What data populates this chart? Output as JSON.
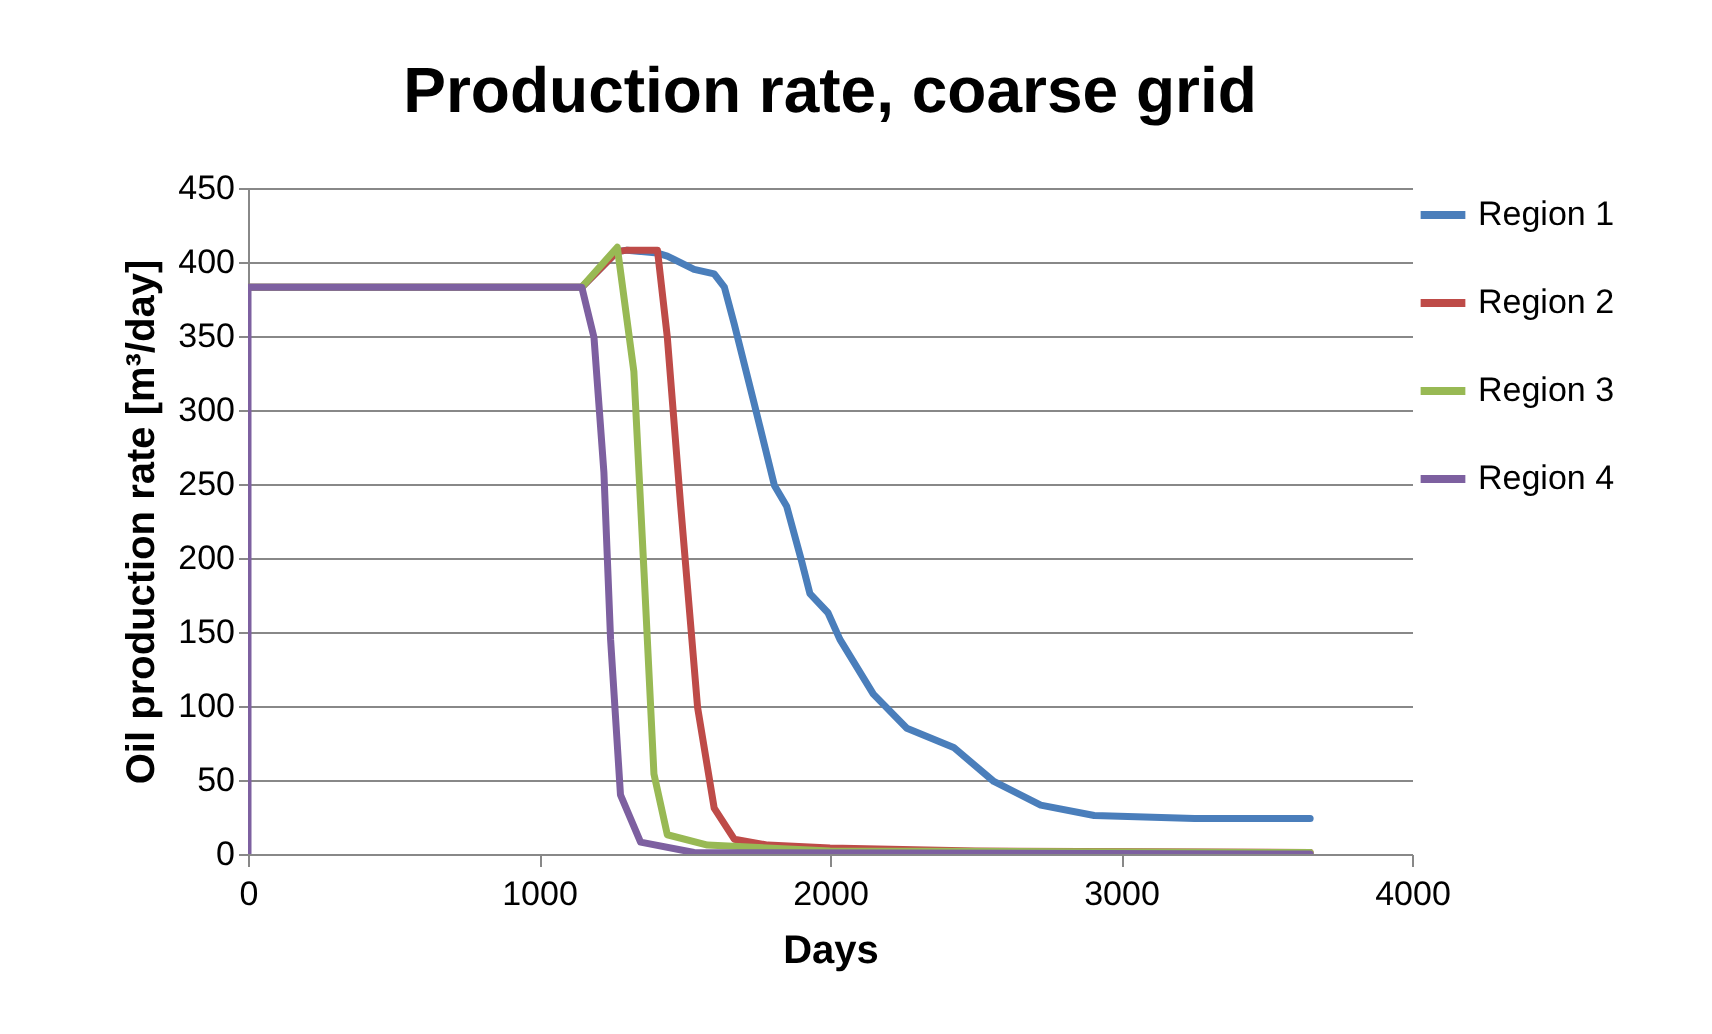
{
  "chart_data": {
    "type": "line",
    "title": "Production rate, coarse grid",
    "xlabel": "Days",
    "ylabel": "Oil production rate [m³/day]",
    "xlim": [
      0,
      4000
    ],
    "xticks": [
      0,
      1000,
      2000,
      3000,
      4000
    ],
    "ylim": [
      0,
      450
    ],
    "yticks": [
      0,
      50,
      100,
      150,
      200,
      250,
      300,
      350,
      400,
      450
    ],
    "grid": "y",
    "legend": "right",
    "series": [
      {
        "name": "Region 1",
        "color": "#4a7ebb",
        "x": [
          0,
          1147,
          1269,
          1303,
          1407,
          1441,
          1533,
          1602,
          1637,
          1671,
          1740,
          1809,
          1851,
          1901,
          1931,
          1993,
          2034,
          2149,
          2264,
          2425,
          2563,
          2724,
          2908,
          3253,
          3650
        ],
        "values": [
          383,
          383,
          407,
          408,
          406,
          404,
          395,
          392,
          383,
          358,
          304,
          249,
          235,
          199,
          176,
          163,
          145,
          108,
          85,
          72,
          49,
          33,
          26,
          24,
          24
        ]
      },
      {
        "name": "Region 2",
        "color": "#be4b48",
        "x": [
          0,
          1147,
          1269,
          1303,
          1407,
          1441,
          1487,
          1545,
          1602,
          1671,
          1786,
          2000,
          2500,
          3650
        ],
        "values": [
          383,
          383,
          407,
          408,
          408,
          349,
          235,
          99,
          31,
          10,
          6,
          4,
          2,
          1
        ]
      },
      {
        "name": "Region 3",
        "color": "#98b954",
        "x": [
          0,
          1147,
          1269,
          1326,
          1361,
          1395,
          1441,
          1579,
          2000,
          3650
        ],
        "values": [
          383,
          383,
          410,
          326,
          190,
          54,
          13,
          6,
          2,
          1
        ]
      },
      {
        "name": "Region 4",
        "color": "#7d60a0",
        "x": [
          0,
          0,
          1147,
          1189,
          1223,
          1246,
          1280,
          1349,
          1533,
          3650
        ],
        "values": [
          0,
          383,
          383,
          349,
          258,
          145,
          40,
          8,
          1,
          0
        ]
      }
    ]
  }
}
